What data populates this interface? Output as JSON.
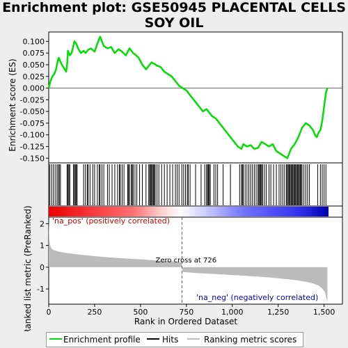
{
  "title": "Enrichment plot: GSE50945 PLACENTAL CELLS\nSOY OIL",
  "title_lines": [
    "Enrichment plot: GSE50945 PLACENTAL CELLS",
    "SOY OIL"
  ],
  "legend": {
    "enrichment_profile": "Enrichment profile",
    "hits": "Hits",
    "ranking_metric": "Ranking metric scores"
  },
  "colors": {
    "enrichment_line": "#00dd00",
    "hits": "#000000",
    "ranking_fill": "#bbbbbb",
    "positive": "#ff0000",
    "negative": "#0000ff",
    "zero_line": "#666666"
  },
  "chart_data": [
    {
      "type": "line",
      "name": "enrichment-score",
      "ylabel": "Enrichment score (ES)",
      "ylim": [
        -0.16,
        0.12
      ],
      "yticks": [
        0.1,
        0.075,
        0.05,
        0.025,
        0.0,
        -0.025,
        -0.05,
        -0.075,
        -0.1,
        -0.125,
        -0.15
      ],
      "ytick_labels": [
        "0.100",
        "0.075",
        "0.050",
        "0.025",
        "0.000",
        "-0.025",
        "-0.050",
        "-0.075",
        "-0.100",
        "-0.125",
        "-0.150"
      ],
      "xlim": [
        0,
        1600
      ],
      "x": [
        0,
        10,
        20,
        30,
        40,
        50,
        55,
        65,
        80,
        95,
        100,
        105,
        115,
        125,
        140,
        150,
        160,
        175,
        190,
        200,
        215,
        230,
        250,
        265,
        280,
        290,
        300,
        320,
        340,
        360,
        380,
        400,
        420,
        440,
        460,
        470,
        490,
        510,
        530,
        550,
        560,
        575,
        590,
        610,
        630,
        650,
        670,
        690,
        710,
        730,
        750,
        760,
        780,
        800,
        820,
        840,
        860,
        880,
        890,
        910,
        930,
        950,
        970,
        990,
        1010,
        1030,
        1050,
        1060,
        1080,
        1100,
        1120,
        1140,
        1160,
        1180,
        1200,
        1220,
        1240,
        1260,
        1280,
        1300,
        1320,
        1340,
        1360,
        1380,
        1400,
        1420,
        1440,
        1450,
        1460,
        1470,
        1480,
        1490,
        1500,
        1510,
        1518
      ],
      "y": [
        0.0,
        0.015,
        0.025,
        0.03,
        0.04,
        0.06,
        0.065,
        0.055,
        0.045,
        0.035,
        0.05,
        0.08,
        0.07,
        0.075,
        0.1,
        0.095,
        0.085,
        0.075,
        0.08,
        0.075,
        0.082,
        0.085,
        0.078,
        0.095,
        0.11,
        0.1,
        0.09,
        0.085,
        0.088,
        0.075,
        0.083,
        0.078,
        0.07,
        0.085,
        0.075,
        0.072,
        0.065,
        0.05,
        0.04,
        0.05,
        0.055,
        0.052,
        0.048,
        0.045,
        0.035,
        0.03,
        0.025,
        0.015,
        0.005,
        0.0,
        -0.005,
        -0.01,
        -0.02,
        -0.03,
        -0.04,
        -0.05,
        -0.045,
        -0.055,
        -0.06,
        -0.065,
        -0.075,
        -0.085,
        -0.095,
        -0.105,
        -0.115,
        -0.125,
        -0.13,
        -0.12,
        -0.125,
        -0.122,
        -0.13,
        -0.128,
        -0.115,
        -0.12,
        -0.125,
        -0.12,
        -0.135,
        -0.14,
        -0.145,
        -0.15,
        -0.13,
        -0.12,
        -0.105,
        -0.085,
        -0.075,
        -0.08,
        -0.09,
        -0.1,
        -0.105,
        -0.095,
        -0.09,
        -0.07,
        -0.04,
        -0.01,
        0.0
      ]
    },
    {
      "type": "hits",
      "name": "hits",
      "positions": [
        5,
        15,
        25,
        35,
        45,
        52,
        58,
        64,
        100,
        105,
        110,
        115,
        135,
        140,
        145,
        150,
        155,
        190,
        200,
        210,
        215,
        225,
        240,
        250,
        265,
        275,
        280,
        290,
        300,
        320,
        330,
        345,
        360,
        375,
        385,
        390,
        400,
        410,
        430,
        435,
        440,
        450,
        455,
        460,
        470,
        480,
        495,
        510,
        530,
        545,
        550,
        555,
        560,
        565,
        570,
        575,
        580,
        590,
        600,
        615,
        630,
        645,
        660,
        675,
        690,
        700,
        710,
        725,
        735,
        745,
        755,
        760,
        770,
        800,
        830,
        850,
        860,
        865,
        870,
        875,
        880,
        900,
        910,
        920,
        950,
        990,
        1040,
        1050,
        1055,
        1060,
        1070,
        1080,
        1090,
        1100,
        1110,
        1120,
        1130,
        1140,
        1145,
        1150,
        1155,
        1160,
        1165,
        1175,
        1185,
        1200,
        1210,
        1225,
        1240,
        1255,
        1265,
        1275,
        1285,
        1295,
        1300,
        1305,
        1310,
        1315,
        1320,
        1325,
        1330,
        1335,
        1340,
        1345,
        1350,
        1355,
        1360,
        1365,
        1370,
        1375,
        1380,
        1390,
        1400,
        1410,
        1420,
        1465,
        1480,
        1490,
        1500,
        1510
      ]
    },
    {
      "type": "area",
      "name": "ranking-metric",
      "xlabel": "Rank in Ordered Dataset",
      "ylabel": "Ranked list metric (PreRanked)",
      "ylim": [
        -1.7,
        2.3
      ],
      "yticks": [
        2,
        1,
        0,
        -1
      ],
      "ytick_labels": [
        "2",
        "1",
        "0",
        "-1"
      ],
      "xticks": [
        0,
        250,
        500,
        750,
        1000,
        1250,
        1500
      ],
      "xtick_labels": [
        "0",
        "250",
        "500",
        "750",
        "1,000",
        "1,250",
        "1,500"
      ],
      "xlim": [
        0,
        1600
      ],
      "x": [
        0,
        3,
        8,
        15,
        30,
        60,
        100,
        200,
        300,
        400,
        500,
        600,
        700,
        725,
        726,
        730,
        800,
        900,
        1000,
        1100,
        1200,
        1300,
        1350,
        1400,
        1440,
        1470,
        1490,
        1505,
        1512,
        1518
      ],
      "y": [
        2.2,
        1.3,
        1.0,
        0.85,
        0.78,
        0.7,
        0.65,
        0.55,
        0.47,
        0.41,
        0.36,
        0.3,
        0.26,
        0.22,
        0.0,
        -0.22,
        -0.27,
        -0.31,
        -0.36,
        -0.41,
        -0.47,
        -0.55,
        -0.6,
        -0.67,
        -0.75,
        -0.85,
        -0.98,
        -1.15,
        -1.4,
        -1.6
      ],
      "zero_cross_label": "Zero cross at 726",
      "zero_cross_x": 726,
      "pos_label": "'na_pos' (positively correlated)",
      "neg_label": "'na_neg' (negatively correlated)"
    }
  ]
}
